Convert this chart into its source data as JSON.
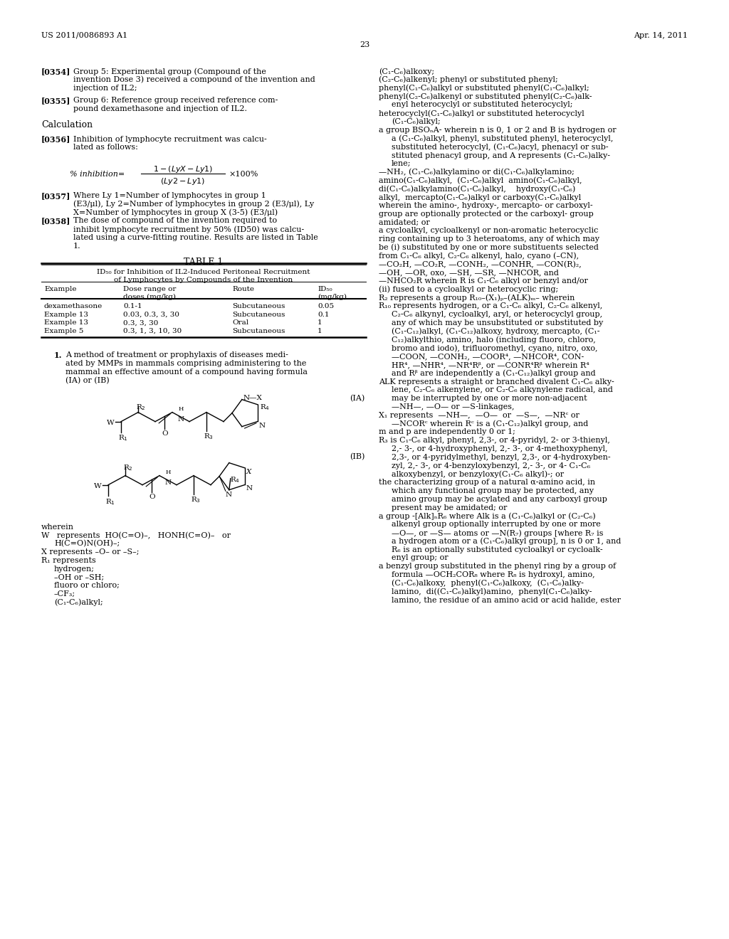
{
  "page_number": "23",
  "patent_number": "US 2011/0086893 A1",
  "patent_date": "Apr. 14, 2011"
}
